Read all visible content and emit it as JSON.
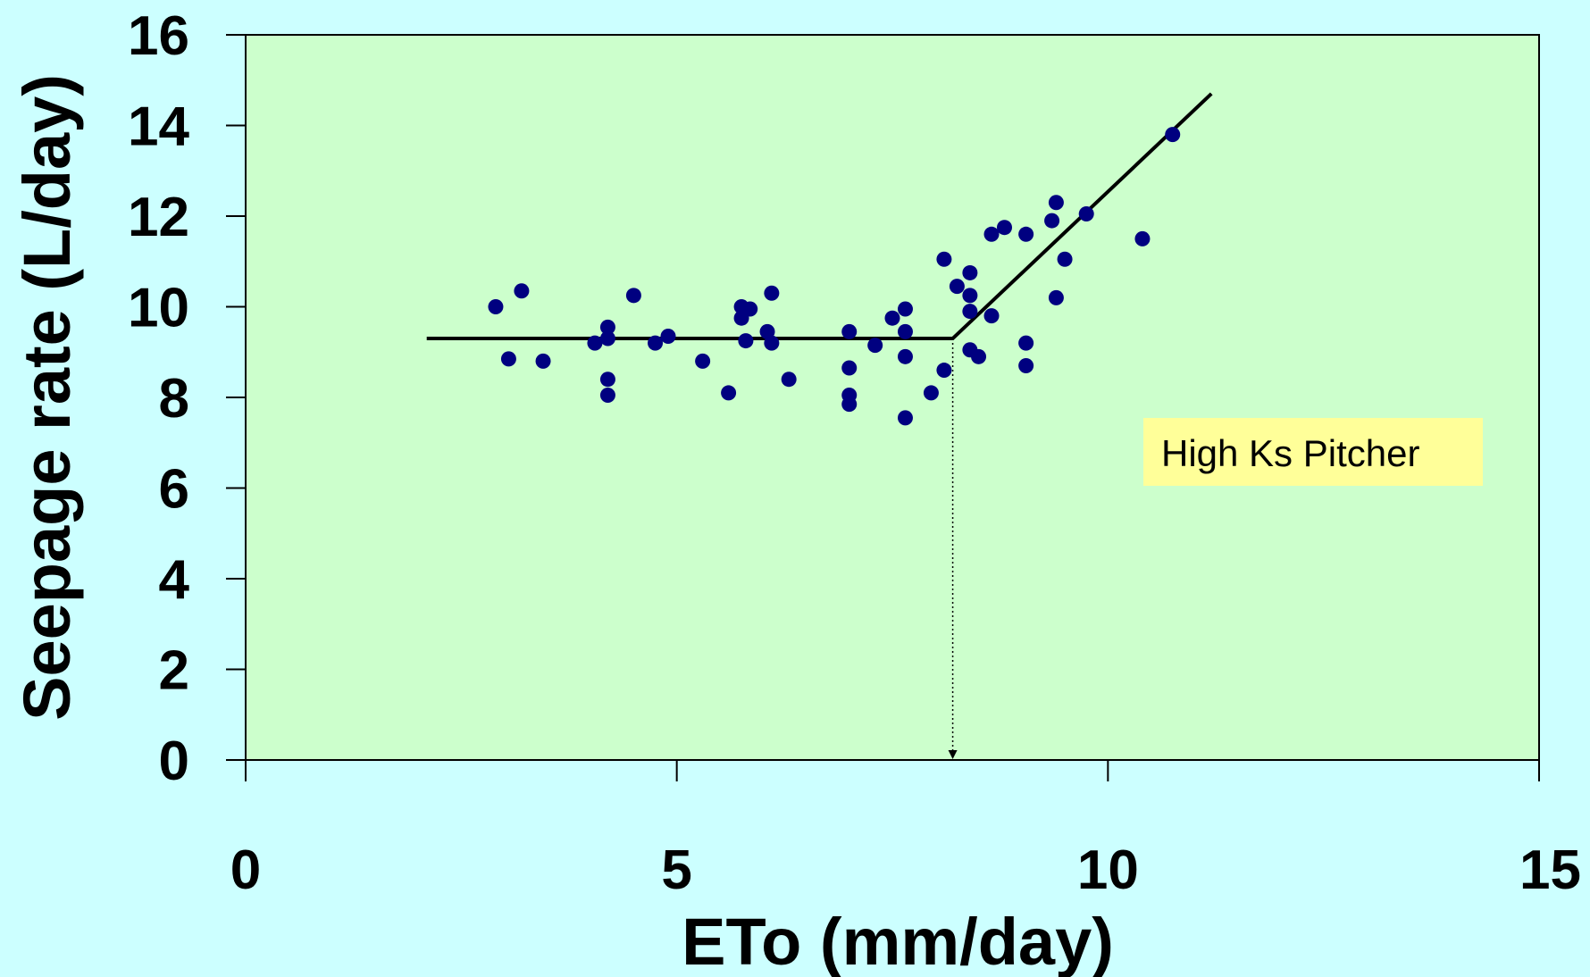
{
  "chart_data": {
    "type": "scatter",
    "title": "",
    "xlabel": "ETo (mm/day)",
    "ylabel": "Seepage rate (L/day)",
    "xlim": [
      0,
      15
    ],
    "ylim": [
      0,
      16
    ],
    "xticks": [
      "0",
      "5",
      "10",
      "15"
    ],
    "yticks": [
      "0",
      "2",
      "4",
      "6",
      "8",
      "10",
      "12",
      "14",
      "16"
    ],
    "grid": false,
    "legend": "none",
    "colors": {
      "page_background": "#ccffff",
      "plot_background": "#ccffcc",
      "points": "#000080",
      "fit_line": "#000000",
      "annotation_box": "#ffff99"
    },
    "series": [
      {
        "type": "scatter",
        "points": [
          {
            "x": 2.9,
            "y": 10.0
          },
          {
            "x": 3.05,
            "y": 8.85
          },
          {
            "x": 3.2,
            "y": 10.35
          },
          {
            "x": 3.45,
            "y": 8.8
          },
          {
            "x": 4.05,
            "y": 9.2
          },
          {
            "x": 4.2,
            "y": 9.55
          },
          {
            "x": 4.2,
            "y": 9.3
          },
          {
            "x": 4.2,
            "y": 8.4
          },
          {
            "x": 4.2,
            "y": 8.05
          },
          {
            "x": 4.5,
            "y": 10.25
          },
          {
            "x": 4.75,
            "y": 9.2
          },
          {
            "x": 4.9,
            "y": 9.35
          },
          {
            "x": 5.3,
            "y": 8.8
          },
          {
            "x": 5.6,
            "y": 8.1
          },
          {
            "x": 5.75,
            "y": 10.0
          },
          {
            "x": 5.75,
            "y": 9.75
          },
          {
            "x": 5.8,
            "y": 9.25
          },
          {
            "x": 5.85,
            "y": 9.95
          },
          {
            "x": 6.05,
            "y": 9.45
          },
          {
            "x": 6.1,
            "y": 10.3
          },
          {
            "x": 6.1,
            "y": 9.2
          },
          {
            "x": 6.3,
            "y": 8.4
          },
          {
            "x": 7.0,
            "y": 9.45
          },
          {
            "x": 7.0,
            "y": 8.65
          },
          {
            "x": 7.0,
            "y": 8.05
          },
          {
            "x": 7.0,
            "y": 7.85
          },
          {
            "x": 7.3,
            "y": 9.15
          },
          {
            "x": 7.5,
            "y": 9.75
          },
          {
            "x": 7.65,
            "y": 9.95
          },
          {
            "x": 7.65,
            "y": 9.45
          },
          {
            "x": 7.65,
            "y": 8.9
          },
          {
            "x": 7.65,
            "y": 7.55
          },
          {
            "x": 7.95,
            "y": 8.1
          },
          {
            "x": 8.1,
            "y": 8.6
          },
          {
            "x": 8.1,
            "y": 11.05
          },
          {
            "x": 8.25,
            "y": 10.45
          },
          {
            "x": 8.4,
            "y": 10.75
          },
          {
            "x": 8.4,
            "y": 10.25
          },
          {
            "x": 8.4,
            "y": 9.9
          },
          {
            "x": 8.4,
            "y": 9.05
          },
          {
            "x": 8.5,
            "y": 8.9
          },
          {
            "x": 8.65,
            "y": 9.8
          },
          {
            "x": 8.65,
            "y": 11.6
          },
          {
            "x": 8.8,
            "y": 11.75
          },
          {
            "x": 9.05,
            "y": 11.6
          },
          {
            "x": 9.05,
            "y": 9.2
          },
          {
            "x": 9.05,
            "y": 8.7
          },
          {
            "x": 9.35,
            "y": 11.9
          },
          {
            "x": 9.4,
            "y": 12.3
          },
          {
            "x": 9.4,
            "y": 10.2
          },
          {
            "x": 9.5,
            "y": 11.05
          },
          {
            "x": 9.75,
            "y": 12.05
          },
          {
            "x": 10.4,
            "y": 11.5
          },
          {
            "x": 10.75,
            "y": 13.8
          }
        ]
      },
      {
        "type": "line",
        "points": [
          {
            "x": 2.1,
            "y": 9.3
          },
          {
            "x": 8.2,
            "y": 9.3
          },
          {
            "x": 11.2,
            "y": 14.7
          }
        ]
      }
    ],
    "reference_line": {
      "x": 8.2,
      "y_from": 9.3,
      "y_to": 0,
      "style": "dotted-arrow"
    },
    "annotations": [
      {
        "text": "High Ks Pitcher"
      }
    ]
  }
}
